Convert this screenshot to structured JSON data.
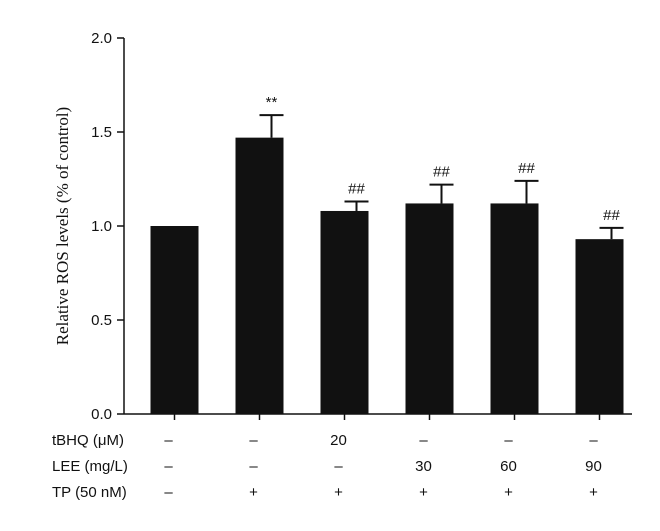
{
  "chart_data": {
    "type": "bar",
    "ylabel": "Relative ROS levels (% of control)",
    "ylim": [
      0,
      2.0
    ],
    "yticks": [
      "0.0",
      "0.5",
      "1.0",
      "1.5",
      "2.0"
    ],
    "grid": false,
    "bar_color": "#111111",
    "values": [
      1.0,
      1.47,
      1.08,
      1.12,
      1.12,
      0.93
    ],
    "errors": [
      0.0,
      0.12,
      0.05,
      0.1,
      0.12,
      0.06
    ],
    "significance": [
      "",
      "**",
      "##",
      "##",
      "##",
      "##"
    ],
    "treatments": [
      {
        "label": "tBHQ (μM)",
        "values": [
          "–",
          "–",
          "20",
          "–",
          "–",
          "–"
        ]
      },
      {
        "label": "LEE (mg/L)",
        "values": [
          "–",
          "–",
          "–",
          "30",
          "60",
          "90"
        ]
      },
      {
        "label": "TP (50 nM)",
        "values": [
          "–",
          "+",
          "+",
          "+",
          "+",
          "+"
        ]
      }
    ]
  }
}
